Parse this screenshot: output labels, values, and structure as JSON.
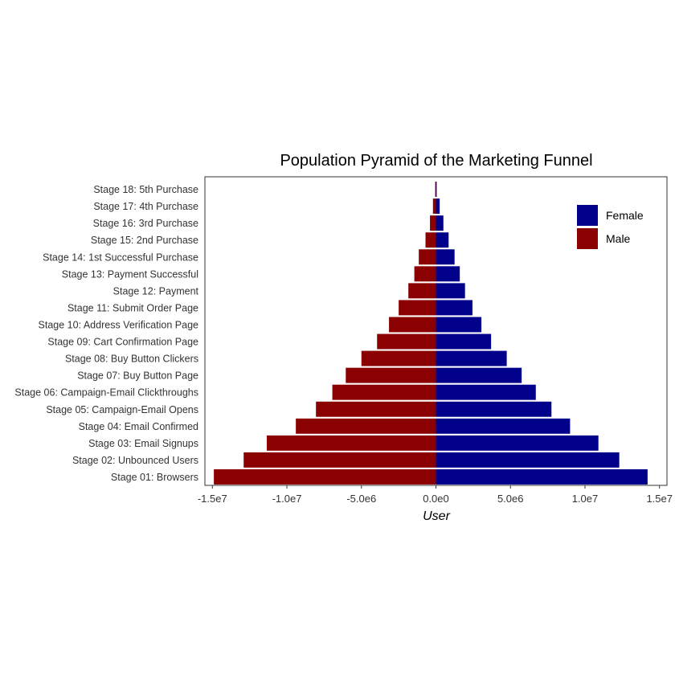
{
  "chart_data": {
    "type": "bar",
    "orientation": "horizontal",
    "title": "Population Pyramid of the Marketing Funnel",
    "xlabel": "User",
    "ylabel": "",
    "xlim": [
      -15500000,
      15500000
    ],
    "x_ticks": [
      -15000000,
      -10000000,
      -5000000,
      0,
      5000000,
      10000000,
      15000000
    ],
    "x_tick_labels": [
      "-1.5e7",
      "-1.0e7",
      "-5.0e6",
      "0.0e0",
      "5.0e6",
      "1.0e7",
      "1.5e7"
    ],
    "grid": false,
    "legend_position": "top-right",
    "categories": [
      "Stage 01: Browsers",
      "Stage 02: Unbounced Users",
      "Stage 03: Email Signups",
      "Stage 04: Email Confirmed",
      "Stage 05: Campaign-Email Opens",
      "Stage 06: Campaign-Email Clickthroughs",
      "Stage 07: Buy Button Page",
      "Stage 08: Buy Button Clickers",
      "Stage 09: Cart Confirmation Page",
      "Stage 10: Address Verification Page",
      "Stage 11: Submit Order Page",
      "Stage 12: Payment",
      "Stage 13: Payment Successful",
      "Stage 14: 1st Successful Purchase",
      "Stage 15: 2nd Purchase",
      "Stage 16: 3rd Purchase",
      "Stage 17: 4th Purchase",
      "Stage 18: 5th Purchase"
    ],
    "series": [
      {
        "name": "Female",
        "color": "#00008B",
        "values": [
          14200000,
          12300000,
          10900000,
          9000000,
          7750000,
          6700000,
          5750000,
          4750000,
          3700000,
          3050000,
          2450000,
          1950000,
          1600000,
          1250000,
          850000,
          500000,
          250000,
          50000
        ]
      },
      {
        "name": "Male",
        "color": "#8B0000",
        "values": [
          -14900000,
          -12900000,
          -11350000,
          -9400000,
          -8050000,
          -6950000,
          -6050000,
          -5000000,
          -3950000,
          -3150000,
          -2500000,
          -1850000,
          -1450000,
          -1150000,
          -700000,
          -400000,
          -200000,
          -50000
        ]
      }
    ]
  }
}
